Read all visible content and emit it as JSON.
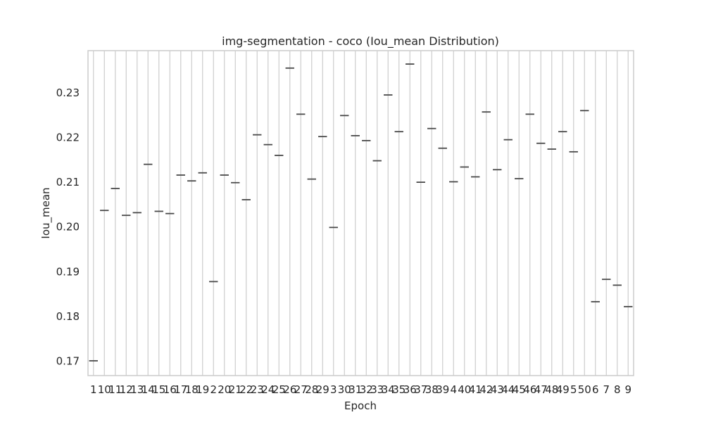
{
  "chart_data": {
    "type": "box",
    "title": "img-segmentation - coco (Iou_mean Distribution)",
    "xlabel": "Epoch",
    "ylabel": "Iou_mean",
    "categories": [
      "1",
      "10",
      "11",
      "12",
      "13",
      "14",
      "15",
      "16",
      "17",
      "18",
      "19",
      "2",
      "20",
      "21",
      "22",
      "23",
      "24",
      "25",
      "26",
      "27",
      "28",
      "29",
      "3",
      "30",
      "31",
      "32",
      "33",
      "34",
      "35",
      "36",
      "37",
      "38",
      "39",
      "4",
      "40",
      "41",
      "42",
      "43",
      "44",
      "45",
      "46",
      "47",
      "48",
      "49",
      "5",
      "50",
      "6",
      "7",
      "8",
      "9"
    ],
    "values": [
      0.1701,
      0.2037,
      0.2086,
      0.2026,
      0.2032,
      0.214,
      0.2035,
      0.203,
      0.2116,
      0.2103,
      0.2121,
      0.1878,
      0.2116,
      0.2099,
      0.2061,
      0.2206,
      0.2184,
      0.216,
      0.2355,
      0.2252,
      0.2107,
      0.2202,
      0.1999,
      0.2249,
      0.2204,
      0.2193,
      0.2148,
      0.2295,
      0.2213,
      0.2364,
      0.21,
      0.222,
      0.2176,
      0.2101,
      0.2134,
      0.2112,
      0.2257,
      0.2128,
      0.2195,
      0.2108,
      0.2252,
      0.2187,
      0.2174,
      0.2213,
      0.2168,
      0.226,
      0.1833,
      0.1883,
      0.187,
      0.1822
    ],
    "yticks": [
      "0.17",
      "0.18",
      "0.19",
      "0.20",
      "0.21",
      "0.22",
      "0.23"
    ],
    "ylim": [
      0.1668,
      0.2394
    ],
    "grid": true,
    "colors": {
      "grid": "#cccccc",
      "box": "#4a4a4a",
      "spine": "#cccccc",
      "text": "#262626"
    }
  }
}
